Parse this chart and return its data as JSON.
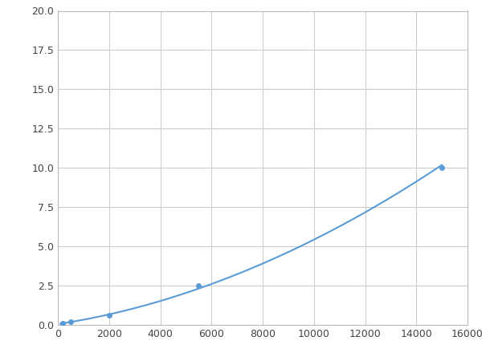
{
  "x": [
    200,
    500,
    2000,
    5500,
    15000
  ],
  "y": [
    0.1,
    0.2,
    0.6,
    2.5,
    10.0
  ],
  "line_color": "#5B9BD5",
  "marker_color": "#5B9BD5",
  "marker_size": 5,
  "line_width": 1.5,
  "xlim": [
    0,
    16000
  ],
  "ylim": [
    0,
    20
  ],
  "xticks": [
    0,
    2000,
    4000,
    6000,
    8000,
    10000,
    12000,
    14000,
    16000
  ],
  "yticks": [
    0.0,
    2.5,
    5.0,
    7.5,
    10.0,
    12.5,
    15.0,
    17.5,
    20.0
  ],
  "grid": true,
  "background_color": "#ffffff",
  "figsize": [
    6.0,
    4.5
  ],
  "dpi": 100
}
